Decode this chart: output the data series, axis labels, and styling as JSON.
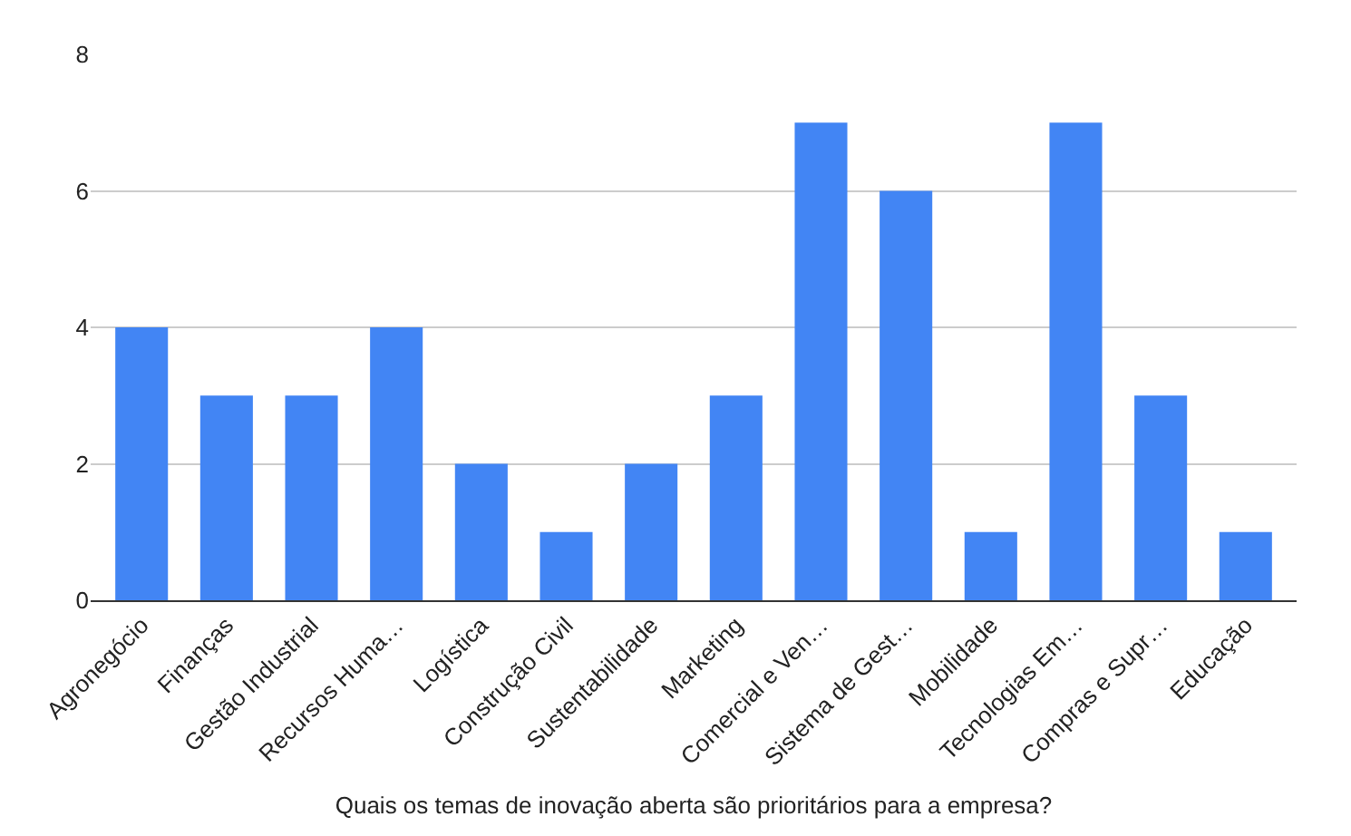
{
  "chart_data": {
    "type": "bar",
    "xlabel": "Quais os temas de inovação aberta são prioritários para a empresa?",
    "categories": [
      "Agronegócio",
      "Finanças",
      "Gestão Industrial",
      "Recursos Huma…",
      "Logística",
      "Construção Civil",
      "Sustentabilidade",
      "Marketing",
      "Comercial e Ven…",
      "Sistema de Gest…",
      "Mobilidade",
      "Tecnologias Em…",
      "Compras e Supr…",
      "Educação"
    ],
    "values": [
      4,
      3,
      3,
      4,
      2,
      1,
      2,
      3,
      7,
      6,
      1,
      7,
      3,
      1
    ],
    "color": "#4285f4",
    "ylim": [
      0,
      8
    ],
    "yticks": [
      0,
      2,
      4,
      6,
      8
    ],
    "grid": "y",
    "legend": false
  }
}
